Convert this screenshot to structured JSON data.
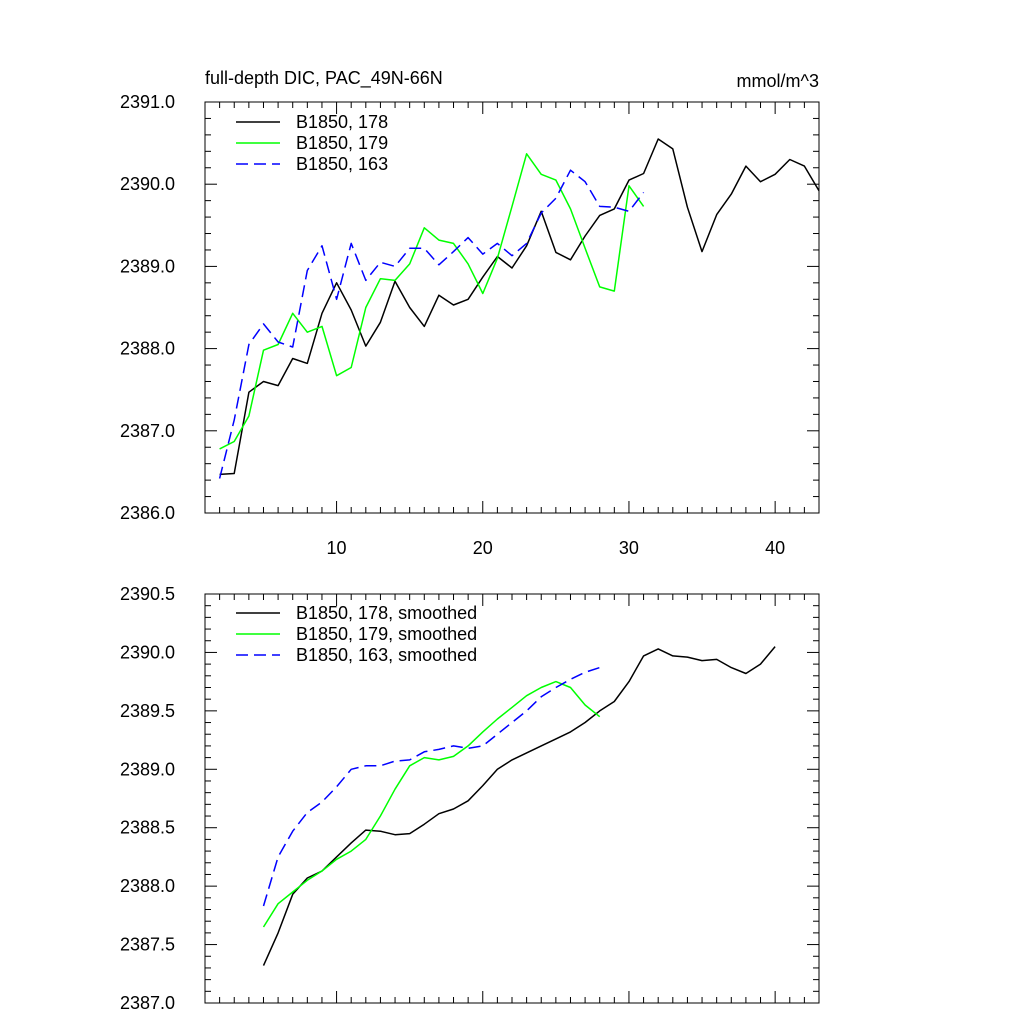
{
  "chart_data": [
    {
      "type": "line",
      "title": "full-depth DIC, PAC_49N-66N",
      "units": "mmol/m^3",
      "xlim": [
        1,
        43
      ],
      "ylim": [
        2386.0,
        2391.0
      ],
      "xticks": [
        10,
        20,
        30,
        40
      ],
      "xtick_labels": [
        "10",
        "20",
        "30",
        "40"
      ],
      "yticks": [
        2386.0,
        2387.0,
        2388.0,
        2389.0,
        2390.0,
        2391.0
      ],
      "ytick_labels": [
        "2386.0",
        "2387.0",
        "2388.0",
        "2389.0",
        "2390.0",
        "2391.0"
      ],
      "legend_position": "top-left",
      "series": [
        {
          "name": "B1850, 178",
          "color": "#000000",
          "dash": "solid",
          "x": [
            2,
            3,
            4,
            5,
            6,
            7,
            8,
            9,
            10,
            11,
            12,
            13,
            14,
            15,
            16,
            17,
            18,
            19,
            20,
            21,
            22,
            23,
            24,
            25,
            26,
            27,
            28,
            29,
            30,
            31,
            32,
            33,
            34,
            35,
            36,
            37,
            38,
            39,
            40,
            41,
            42,
            43
          ],
          "y": [
            2386.47,
            2386.48,
            2387.47,
            2387.6,
            2387.55,
            2387.88,
            2387.82,
            2388.43,
            2388.8,
            2388.47,
            2388.03,
            2388.32,
            2388.82,
            2388.5,
            2388.27,
            2388.65,
            2388.53,
            2388.6,
            2388.87,
            2389.12,
            2388.98,
            2389.25,
            2389.67,
            2389.17,
            2389.08,
            2389.37,
            2389.62,
            2389.7,
            2390.05,
            2390.13,
            2390.55,
            2390.43,
            2389.72,
            2389.18,
            2389.63,
            2389.88,
            2390.22,
            2390.03,
            2390.12,
            2390.3,
            2390.22,
            2389.92
          ]
        },
        {
          "name": "B1850, 179",
          "color": "#00ff00",
          "dash": "solid",
          "x": [
            2,
            3,
            4,
            5,
            6,
            7,
            8,
            9,
            10,
            11,
            12,
            13,
            14,
            15,
            16,
            17,
            18,
            19,
            20,
            21,
            22,
            23,
            24,
            25,
            26,
            27,
            28,
            29,
            30,
            31
          ],
          "y": [
            2386.78,
            2386.87,
            2387.18,
            2387.98,
            2388.05,
            2388.43,
            2388.2,
            2388.27,
            2387.67,
            2387.77,
            2388.5,
            2388.85,
            2388.83,
            2389.03,
            2389.47,
            2389.32,
            2389.28,
            2389.03,
            2388.67,
            2389.1,
            2389.73,
            2390.37,
            2390.12,
            2390.05,
            2389.7,
            2389.22,
            2388.75,
            2388.7,
            2389.98,
            2389.73
          ]
        },
        {
          "name": "B1850, 163",
          "color": "#0000ff",
          "dash": "dashed",
          "x": [
            2,
            3,
            4,
            5,
            6,
            7,
            8,
            9,
            10,
            11,
            12,
            13,
            14,
            15,
            16,
            17,
            18,
            19,
            20,
            21,
            22,
            23,
            24,
            25,
            26,
            27,
            28,
            29,
            30,
            31
          ],
          "y": [
            2386.42,
            2387.13,
            2388.05,
            2388.3,
            2388.08,
            2388.02,
            2388.95,
            2389.25,
            2388.6,
            2389.28,
            2388.83,
            2389.05,
            2389.0,
            2389.22,
            2389.22,
            2389.02,
            2389.18,
            2389.35,
            2389.15,
            2389.28,
            2389.13,
            2389.28,
            2389.65,
            2389.83,
            2390.17,
            2390.03,
            2389.73,
            2389.72,
            2389.67,
            2389.9
          ]
        }
      ]
    },
    {
      "type": "line",
      "title": "",
      "units": "",
      "xlim": [
        1,
        43
      ],
      "ylim": [
        2387.0,
        2390.5
      ],
      "xticks": [
        10,
        20,
        30,
        40
      ],
      "xtick_labels": [],
      "yticks": [
        2387.0,
        2387.5,
        2388.0,
        2388.5,
        2389.0,
        2389.5,
        2390.0,
        2390.5
      ],
      "ytick_labels": [
        "2387.0",
        "2387.5",
        "2388.0",
        "2388.5",
        "2389.0",
        "2389.5",
        "2390.0",
        "2390.5"
      ],
      "legend_position": "top-left",
      "series": [
        {
          "name": "B1850, 178, smoothed",
          "color": "#000000",
          "dash": "solid",
          "x": [
            5,
            6,
            7,
            8,
            9,
            10,
            11,
            12,
            13,
            14,
            15,
            16,
            17,
            18,
            19,
            20,
            21,
            22,
            23,
            24,
            25,
            26,
            27,
            28,
            29,
            30,
            31,
            32,
            33,
            34,
            35,
            36,
            37,
            38,
            39,
            40
          ],
          "y": [
            2387.32,
            2387.6,
            2387.93,
            2388.07,
            2388.13,
            2388.25,
            2388.37,
            2388.48,
            2388.47,
            2388.44,
            2388.45,
            2388.53,
            2388.62,
            2388.66,
            2388.73,
            2388.86,
            2389.0,
            2389.08,
            2389.14,
            2389.2,
            2389.26,
            2389.32,
            2389.4,
            2389.5,
            2389.58,
            2389.75,
            2389.97,
            2390.03,
            2389.97,
            2389.96,
            2389.93,
            2389.94,
            2389.87,
            2389.82,
            2389.9,
            2390.05
          ]
        },
        {
          "name": "B1850, 179, smoothed",
          "color": "#00ff00",
          "dash": "solid",
          "x": [
            5,
            6,
            7,
            8,
            9,
            10,
            11,
            12,
            13,
            14,
            15,
            16,
            17,
            18,
            19,
            20,
            21,
            22,
            23,
            24,
            25,
            26,
            27,
            28
          ],
          "y": [
            2387.65,
            2387.85,
            2387.95,
            2388.05,
            2388.13,
            2388.23,
            2388.3,
            2388.4,
            2388.6,
            2388.83,
            2389.03,
            2389.1,
            2389.08,
            2389.11,
            2389.2,
            2389.32,
            2389.43,
            2389.53,
            2389.63,
            2389.7,
            2389.75,
            2389.7,
            2389.55,
            2389.45
          ]
        },
        {
          "name": "B1850, 163, smoothed",
          "color": "#0000ff",
          "dash": "dashed",
          "x": [
            5,
            6,
            7,
            8,
            9,
            10,
            11,
            12,
            13,
            14,
            15,
            16,
            17,
            18,
            19,
            20,
            21,
            22,
            23,
            24,
            25,
            26,
            27,
            28
          ],
          "y": [
            2387.83,
            2388.25,
            2388.47,
            2388.63,
            2388.72,
            2388.85,
            2389.0,
            2389.03,
            2389.03,
            2389.07,
            2389.08,
            2389.15,
            2389.17,
            2389.2,
            2389.18,
            2389.2,
            2389.3,
            2389.4,
            2389.5,
            2389.62,
            2389.7,
            2389.77,
            2389.83,
            2389.87
          ]
        }
      ]
    }
  ]
}
